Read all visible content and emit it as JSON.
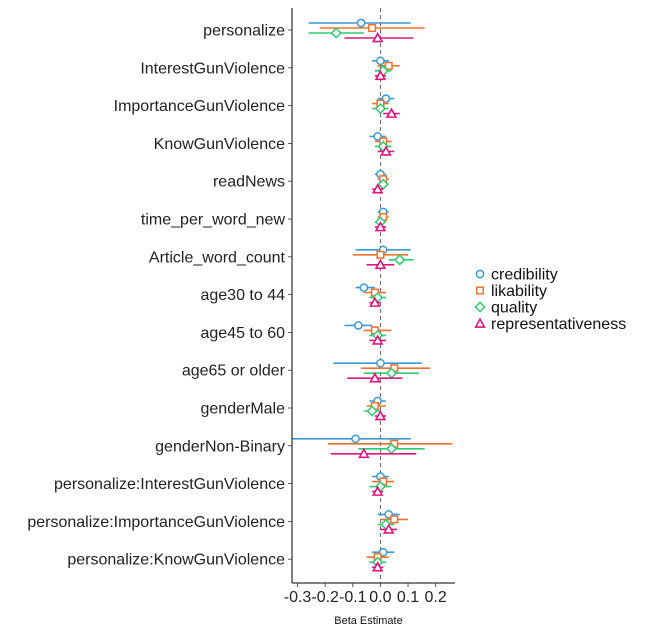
{
  "chart_data": {
    "type": "scatter",
    "subtype": "coefficient-plot",
    "xlabel": "Beta Estimate",
    "xlim": [
      -0.32,
      0.27
    ],
    "xticks": [
      -0.3,
      -0.2,
      -0.1,
      0.0,
      0.1,
      0.2
    ],
    "xtick_labels": [
      "-0.3",
      "-0.2",
      "-0.1",
      "0.0",
      "0.1",
      "0.2"
    ],
    "reference_line": 0.0,
    "grid": false,
    "legend_position": "right",
    "categories": [
      "personalize",
      "InterestGunViolence",
      "ImportanceGunViolence",
      "KnowGunViolence",
      "readNews",
      "time_per_word_new",
      "Article_word_count",
      "age30 to 44",
      "age45 to 60",
      "age65 or older",
      "genderMale",
      "genderNon-Binary",
      "personalize:InterestGunViolence",
      "personalize:ImportanceGunViolence",
      "personalize:KnowGunViolence"
    ],
    "series": [
      {
        "name": "credibility",
        "color": "#3a9ad9",
        "marker": "circle",
        "estimates": [
          -0.07,
          0.0,
          0.02,
          -0.01,
          0.0,
          0.01,
          0.01,
          -0.06,
          -0.08,
          0.0,
          -0.01,
          -0.09,
          0.0,
          0.03,
          0.01
        ],
        "lower": [
          -0.26,
          -0.03,
          -0.01,
          -0.04,
          -0.02,
          -0.01,
          -0.09,
          -0.09,
          -0.13,
          -0.17,
          -0.04,
          -0.32,
          -0.03,
          -0.01,
          -0.03
        ],
        "upper": [
          0.11,
          0.03,
          0.05,
          0.02,
          0.02,
          0.03,
          0.11,
          -0.02,
          -0.03,
          0.15,
          0.02,
          0.11,
          0.03,
          0.07,
          0.05
        ]
      },
      {
        "name": "likability",
        "color": "#f0712c",
        "marker": "square",
        "estimates": [
          -0.03,
          0.03,
          0.0,
          0.01,
          0.01,
          0.01,
          0.0,
          -0.02,
          -0.02,
          0.05,
          -0.02,
          0.05,
          0.01,
          0.05,
          -0.01
        ],
        "lower": [
          -0.22,
          -0.01,
          -0.03,
          -0.02,
          -0.01,
          -0.01,
          -0.1,
          -0.06,
          -0.06,
          -0.07,
          -0.05,
          -0.19,
          -0.03,
          0.0,
          -0.05
        ],
        "upper": [
          0.16,
          0.07,
          0.03,
          0.04,
          0.03,
          0.03,
          0.1,
          0.02,
          0.04,
          0.18,
          0.02,
          0.26,
          0.05,
          0.1,
          0.03
        ]
      },
      {
        "name": "quality",
        "color": "#2ecc71",
        "marker": "diamond",
        "estimates": [
          -0.16,
          0.01,
          0.0,
          0.01,
          0.01,
          0.0,
          0.07,
          -0.01,
          -0.01,
          0.04,
          -0.03,
          0.04,
          0.0,
          0.02,
          -0.01
        ],
        "lower": [
          -0.26,
          -0.02,
          -0.03,
          -0.02,
          -0.01,
          -0.02,
          0.03,
          -0.04,
          -0.04,
          -0.06,
          -0.06,
          -0.08,
          -0.04,
          -0.01,
          -0.04
        ],
        "upper": [
          -0.06,
          0.04,
          0.03,
          0.04,
          0.03,
          0.02,
          0.12,
          0.02,
          0.02,
          0.14,
          0.0,
          0.16,
          0.04,
          0.05,
          0.02
        ]
      },
      {
        "name": "representativeness",
        "color": "#e0157f",
        "marker": "triangle",
        "estimates": [
          -0.01,
          0.0,
          0.04,
          0.02,
          -0.01,
          0.0,
          0.0,
          -0.02,
          -0.01,
          -0.02,
          0.0,
          -0.06,
          -0.01,
          0.03,
          -0.01
        ],
        "lower": [
          -0.13,
          -0.02,
          0.01,
          -0.01,
          -0.03,
          -0.02,
          -0.05,
          -0.04,
          -0.04,
          -0.12,
          -0.02,
          -0.18,
          -0.03,
          0.0,
          -0.03
        ],
        "upper": [
          0.12,
          0.02,
          0.07,
          0.05,
          0.01,
          0.02,
          0.05,
          0.0,
          0.02,
          0.08,
          0.02,
          0.13,
          0.01,
          0.06,
          0.01
        ]
      }
    ]
  }
}
